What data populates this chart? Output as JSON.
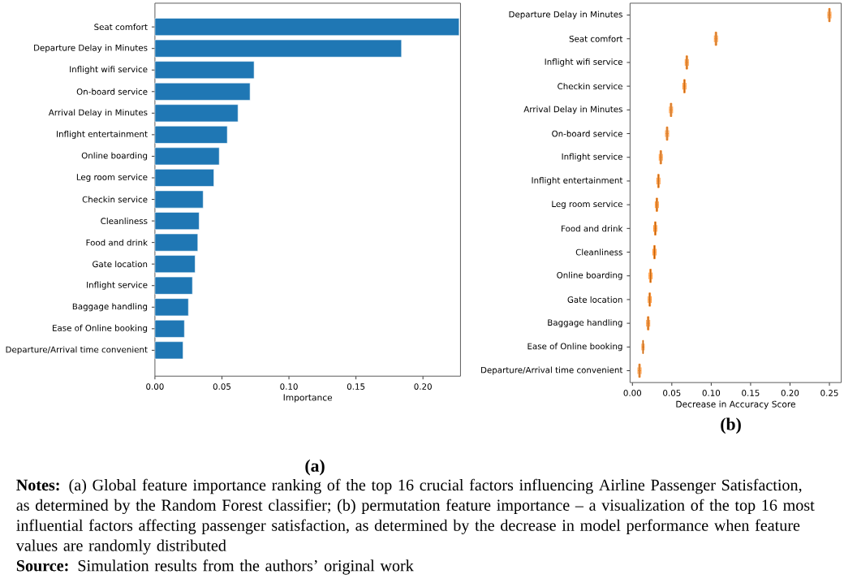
{
  "chart_data": [
    {
      "type": "bar",
      "orientation": "horizontal",
      "xlabel": "Importance",
      "color": "#1f77b4",
      "categories": [
        "Seat comfort",
        "Departure Delay in Minutes",
        "Inflight wifi service",
        "On-board service",
        "Arrival Delay in Minutes",
        "Inflight entertainment",
        "Online boarding",
        "Leg room service",
        "Checkin service",
        "Cleanliness",
        "Food and drink",
        "Gate location",
        "Inflight service",
        "Baggage handling",
        "Ease of Online booking",
        "Departure/Arrival time convenient"
      ],
      "values": [
        0.227,
        0.184,
        0.074,
        0.071,
        0.062,
        0.054,
        0.048,
        0.044,
        0.036,
        0.033,
        0.032,
        0.03,
        0.028,
        0.025,
        0.022,
        0.021
      ],
      "xlim": [
        0,
        0.228
      ],
      "xticks": [
        {
          "value": 0,
          "label": "0.00"
        },
        {
          "value": 0.05,
          "label": "0.05"
        },
        {
          "value": 0.1,
          "label": "0.10"
        },
        {
          "value": 0.15,
          "label": "0.15"
        },
        {
          "value": 0.2,
          "label": "0.20"
        }
      ],
      "annotations": [
        "**(a)**",
        "**Notes:** (a) Global feature importance ranking of the top 16 crucial factors influencing Airline Passenger Satisfaction, as determined by the Random Forest classifier; (b) permutation feature importance – a visualization of the top 16 most influential factors affecting passenger satisfaction, as determined by the decrease in model performance when feature values are randomly distributed",
        "**Source:** Simulation results from the authors’ original work"
      ]
    },
    {
      "type": "box",
      "orientation": "horizontal",
      "xlabel": "Decrease in Accuracy Score",
      "color": "#ff7f0e",
      "categories": [
        "Departure Delay in Minutes",
        "Seat comfort",
        "Inflight wifi service",
        "Checkin service",
        "Arrival Delay in Minutes",
        "On-board service",
        "Inflight service",
        "Inflight entertainment",
        "Leg room service",
        "Food and drink",
        "Cleanliness",
        "Online boarding",
        "Gate location",
        "Baggage handling",
        "Ease of Online booking",
        "Departure/Arrival time convenient"
      ],
      "boxes": [
        {
          "low": 0.248,
          "q1": 0.249,
          "median": 0.25,
          "q3": 0.251,
          "high": 0.252
        },
        {
          "low": 0.104,
          "q1": 0.105,
          "median": 0.106,
          "q3": 0.107,
          "high": 0.108
        },
        {
          "low": 0.067,
          "q1": 0.068,
          "median": 0.069,
          "q3": 0.07,
          "high": 0.071
        },
        {
          "low": 0.064,
          "q1": 0.065,
          "median": 0.066,
          "q3": 0.067,
          "high": 0.068
        },
        {
          "low": 0.047,
          "q1": 0.048,
          "median": 0.049,
          "q3": 0.05,
          "high": 0.051
        },
        {
          "low": 0.042,
          "q1": 0.043,
          "median": 0.044,
          "q3": 0.045,
          "high": 0.046
        },
        {
          "low": 0.034,
          "q1": 0.035,
          "median": 0.036,
          "q3": 0.037,
          "high": 0.038
        },
        {
          "low": 0.031,
          "q1": 0.032,
          "median": 0.033,
          "q3": 0.034,
          "high": 0.035
        },
        {
          "low": 0.029,
          "q1": 0.03,
          "median": 0.031,
          "q3": 0.032,
          "high": 0.033
        },
        {
          "low": 0.027,
          "q1": 0.028,
          "median": 0.029,
          "q3": 0.03,
          "high": 0.031
        },
        {
          "low": 0.026,
          "q1": 0.027,
          "median": 0.028,
          "q3": 0.029,
          "high": 0.03
        },
        {
          "low": 0.021,
          "q1": 0.022,
          "median": 0.023,
          "q3": 0.024,
          "high": 0.025
        },
        {
          "low": 0.02,
          "q1": 0.021,
          "median": 0.022,
          "q3": 0.023,
          "high": 0.024
        },
        {
          "low": 0.018,
          "q1": 0.019,
          "median": 0.02,
          "q3": 0.021,
          "high": 0.022
        },
        {
          "low": 0.012,
          "q1": 0.013,
          "median": 0.0135,
          "q3": 0.014,
          "high": 0.015
        },
        {
          "low": 0.007,
          "q1": 0.008,
          "median": 0.009,
          "q3": 0.01,
          "high": 0.011
        }
      ],
      "xlim": [
        -0.003,
        0.265
      ],
      "xticks": [
        {
          "value": 0,
          "label": "0.00"
        },
        {
          "value": 0.05,
          "label": "0.05"
        },
        {
          "value": 0.1,
          "label": "0.10"
        },
        {
          "value": 0.15,
          "label": "0.15"
        },
        {
          "value": 0.2,
          "label": "0.20"
        },
        {
          "value": 0.25,
          "label": "0.25"
        }
      ],
      "annotations": [
        "**(b)**"
      ]
    }
  ]
}
